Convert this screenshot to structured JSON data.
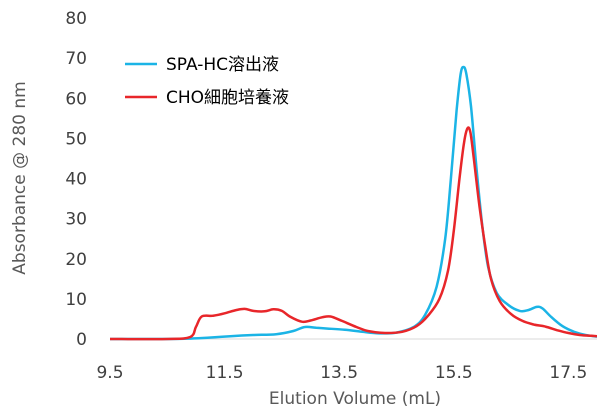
{
  "chart_data": {
    "type": "line",
    "xlabel": "Elution Volume (mL)",
    "ylabel": "Absorbance @ 280 nm",
    "xlim": [
      9.5,
      18.0
    ],
    "ylim": [
      0,
      80
    ],
    "x_ticks": [
      "9.5",
      "11.5",
      "13.5",
      "15.5",
      "17.5"
    ],
    "x_tick_values": [
      9.5,
      11.5,
      13.5,
      15.5,
      17.5
    ],
    "y_ticks": [
      "0",
      "10",
      "20",
      "30",
      "40",
      "50",
      "60",
      "70",
      "80"
    ],
    "y_tick_values": [
      0,
      10,
      20,
      30,
      40,
      50,
      60,
      70,
      80
    ],
    "grid": false,
    "legend_position": "top-left",
    "series": [
      {
        "name": "SPA-HC溶出液",
        "color": "#1BB4E6",
        "points": [
          [
            9.5,
            0
          ],
          [
            10.5,
            0
          ],
          [
            10.9,
            0.1
          ],
          [
            11.2,
            0.3
          ],
          [
            11.6,
            0.7
          ],
          [
            12.0,
            1.0
          ],
          [
            12.4,
            1.2
          ],
          [
            12.7,
            2.0
          ],
          [
            12.9,
            3.0
          ],
          [
            13.1,
            2.8
          ],
          [
            13.3,
            2.6
          ],
          [
            13.6,
            2.3
          ],
          [
            13.9,
            1.8
          ],
          [
            14.2,
            1.4
          ],
          [
            14.5,
            1.6
          ],
          [
            14.8,
            3.0
          ],
          [
            15.0,
            6.0
          ],
          [
            15.2,
            13.0
          ],
          [
            15.35,
            25.0
          ],
          [
            15.45,
            40.0
          ],
          [
            15.55,
            57.0
          ],
          [
            15.62,
            66.0
          ],
          [
            15.67,
            67.8
          ],
          [
            15.72,
            66.0
          ],
          [
            15.8,
            58.0
          ],
          [
            15.9,
            42.0
          ],
          [
            16.0,
            28.0
          ],
          [
            16.1,
            18.0
          ],
          [
            16.25,
            11.5
          ],
          [
            16.45,
            8.5
          ],
          [
            16.65,
            7.0
          ],
          [
            16.8,
            7.2
          ],
          [
            16.95,
            8.0
          ],
          [
            17.05,
            7.6
          ],
          [
            17.2,
            5.5
          ],
          [
            17.4,
            3.2
          ],
          [
            17.6,
            1.8
          ],
          [
            17.8,
            1.0
          ],
          [
            18.0,
            0.6
          ]
        ]
      },
      {
        "name": "CHO細胞培養液",
        "color": "#E8262A",
        "points": [
          [
            9.5,
            0
          ],
          [
            10.5,
            0
          ],
          [
            10.9,
            0.5
          ],
          [
            11.0,
            3.0
          ],
          [
            11.1,
            5.6
          ],
          [
            11.3,
            5.8
          ],
          [
            11.5,
            6.4
          ],
          [
            11.7,
            7.2
          ],
          [
            11.85,
            7.5
          ],
          [
            12.0,
            7.0
          ],
          [
            12.2,
            6.9
          ],
          [
            12.35,
            7.4
          ],
          [
            12.5,
            7.0
          ],
          [
            12.65,
            5.5
          ],
          [
            12.85,
            4.3
          ],
          [
            13.0,
            4.6
          ],
          [
            13.2,
            5.4
          ],
          [
            13.35,
            5.6
          ],
          [
            13.55,
            4.5
          ],
          [
            13.8,
            3.0
          ],
          [
            14.0,
            2.0
          ],
          [
            14.3,
            1.5
          ],
          [
            14.6,
            1.8
          ],
          [
            14.85,
            3.2
          ],
          [
            15.05,
            5.8
          ],
          [
            15.25,
            10.0
          ],
          [
            15.4,
            17.0
          ],
          [
            15.5,
            27.0
          ],
          [
            15.6,
            40.0
          ],
          [
            15.68,
            49.0
          ],
          [
            15.74,
            52.5
          ],
          [
            15.79,
            51.5
          ],
          [
            15.85,
            45.0
          ],
          [
            15.95,
            33.0
          ],
          [
            16.05,
            23.0
          ],
          [
            16.15,
            15.0
          ],
          [
            16.3,
            9.5
          ],
          [
            16.5,
            6.2
          ],
          [
            16.7,
            4.5
          ],
          [
            16.9,
            3.6
          ],
          [
            17.1,
            3.1
          ],
          [
            17.3,
            2.2
          ],
          [
            17.5,
            1.5
          ],
          [
            17.7,
            1.0
          ],
          [
            17.9,
            0.8
          ],
          [
            18.0,
            0.7
          ]
        ]
      }
    ]
  }
}
